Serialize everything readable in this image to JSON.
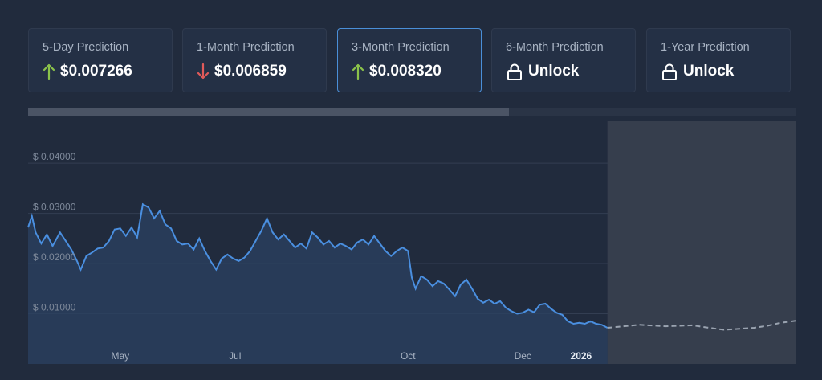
{
  "predictions": [
    {
      "label": "5-Day Prediction",
      "value": "$0.007266",
      "direction": "up"
    },
    {
      "label": "1-Month Prediction",
      "value": "$0.006859",
      "direction": "down"
    },
    {
      "label": "3-Month Prediction",
      "value": "$0.008320",
      "direction": "up",
      "active": true
    },
    {
      "label": "6-Month Prediction",
      "value": "Unlock",
      "direction": "locked"
    },
    {
      "label": "1-Year Prediction",
      "value": "Unlock",
      "direction": "locked"
    }
  ],
  "colors": {
    "up": "#8bc34a",
    "down": "#e05a5a",
    "accent": "#4a8fd8",
    "line": "#4a8fe0",
    "forecast": "#9aa3b0"
  },
  "progress": {
    "fraction": 0.627
  },
  "chart_data": {
    "type": "line",
    "yticks": [
      "$ 0.01000",
      "$ 0.02000",
      "$ 0.03000",
      "$ 0.04000"
    ],
    "ytick_values": [
      0.01,
      0.02,
      0.03,
      0.04
    ],
    "ylim": [
      0,
      0.0485
    ],
    "xticks": [
      "May",
      "Jul",
      "Oct",
      "Dec",
      "2026"
    ],
    "xtick_highlight": "2026",
    "xlim": [
      "2025-03-13",
      "2026-04-25"
    ],
    "xtick_dates": [
      "2025-05-01",
      "2025-07-01",
      "2025-10-01",
      "2025-12-01",
      "2026-01-01"
    ],
    "series": [
      {
        "values": [
          [
            "2025-03-13",
            0.0272
          ],
          [
            "2025-03-15",
            0.0295
          ],
          [
            "2025-03-17",
            0.0262
          ],
          [
            "2025-03-20",
            0.024
          ],
          [
            "2025-03-23",
            0.0258
          ],
          [
            "2025-03-26",
            0.0235
          ],
          [
            "2025-03-30",
            0.0262
          ],
          [
            "2025-04-02",
            0.0245
          ],
          [
            "2025-04-05",
            0.0228
          ],
          [
            "2025-04-08",
            0.0205
          ],
          [
            "2025-04-10",
            0.0188
          ],
          [
            "2025-04-13",
            0.0215
          ],
          [
            "2025-04-16",
            0.0222
          ],
          [
            "2025-04-19",
            0.023
          ],
          [
            "2025-04-22",
            0.0232
          ],
          [
            "2025-04-25",
            0.0245
          ],
          [
            "2025-04-28",
            0.0268
          ],
          [
            "2025-05-01",
            0.027
          ],
          [
            "2025-05-04",
            0.0255
          ],
          [
            "2025-05-07",
            0.0272
          ],
          [
            "2025-05-10",
            0.0252
          ],
          [
            "2025-05-13",
            0.0318
          ],
          [
            "2025-05-16",
            0.0312
          ],
          [
            "2025-05-19",
            0.029
          ],
          [
            "2025-05-22",
            0.0305
          ],
          [
            "2025-05-25",
            0.0278
          ],
          [
            "2025-05-28",
            0.027
          ],
          [
            "2025-05-31",
            0.0245
          ],
          [
            "2025-06-03",
            0.0238
          ],
          [
            "2025-06-06",
            0.024
          ],
          [
            "2025-06-09",
            0.0228
          ],
          [
            "2025-06-12",
            0.025
          ],
          [
            "2025-06-15",
            0.0225
          ],
          [
            "2025-06-18",
            0.0205
          ],
          [
            "2025-06-21",
            0.0188
          ],
          [
            "2025-06-24",
            0.021
          ],
          [
            "2025-06-27",
            0.0218
          ],
          [
            "2025-06-30",
            0.021
          ],
          [
            "2025-07-03",
            0.0205
          ],
          [
            "2025-07-06",
            0.0212
          ],
          [
            "2025-07-09",
            0.0225
          ],
          [
            "2025-07-12",
            0.0245
          ],
          [
            "2025-07-15",
            0.0265
          ],
          [
            "2025-07-18",
            0.029
          ],
          [
            "2025-07-21",
            0.0262
          ],
          [
            "2025-07-24",
            0.0248
          ],
          [
            "2025-07-27",
            0.0258
          ],
          [
            "2025-07-30",
            0.0245
          ],
          [
            "2025-08-02",
            0.0232
          ],
          [
            "2025-08-05",
            0.024
          ],
          [
            "2025-08-08",
            0.023
          ],
          [
            "2025-08-11",
            0.0262
          ],
          [
            "2025-08-14",
            0.0252
          ],
          [
            "2025-08-17",
            0.0238
          ],
          [
            "2025-08-20",
            0.0245
          ],
          [
            "2025-08-23",
            0.0232
          ],
          [
            "2025-08-26",
            0.024
          ],
          [
            "2025-08-29",
            0.0235
          ],
          [
            "2025-09-01",
            0.0228
          ],
          [
            "2025-09-04",
            0.0242
          ],
          [
            "2025-09-07",
            0.0248
          ],
          [
            "2025-09-10",
            0.0238
          ],
          [
            "2025-09-13",
            0.0255
          ],
          [
            "2025-09-16",
            0.024
          ],
          [
            "2025-09-19",
            0.0225
          ],
          [
            "2025-09-22",
            0.0215
          ],
          [
            "2025-09-25",
            0.0225
          ],
          [
            "2025-09-28",
            0.0232
          ],
          [
            "2025-10-01",
            0.0225
          ],
          [
            "2025-10-03",
            0.0172
          ],
          [
            "2025-10-05",
            0.015
          ],
          [
            "2025-10-08",
            0.0175
          ],
          [
            "2025-10-11",
            0.0168
          ],
          [
            "2025-10-14",
            0.0155
          ],
          [
            "2025-10-17",
            0.0165
          ],
          [
            "2025-10-20",
            0.016
          ],
          [
            "2025-10-23",
            0.0148
          ],
          [
            "2025-10-26",
            0.0135
          ],
          [
            "2025-10-29",
            0.0158
          ],
          [
            "2025-11-01",
            0.0168
          ],
          [
            "2025-11-04",
            0.015
          ],
          [
            "2025-11-07",
            0.013
          ],
          [
            "2025-11-10",
            0.0122
          ],
          [
            "2025-11-13",
            0.0128
          ],
          [
            "2025-11-16",
            0.012
          ],
          [
            "2025-11-19",
            0.0125
          ],
          [
            "2025-11-22",
            0.0112
          ],
          [
            "2025-11-25",
            0.0105
          ],
          [
            "2025-11-28",
            0.01
          ],
          [
            "2025-12-01",
            0.0102
          ],
          [
            "2025-12-04",
            0.0108
          ],
          [
            "2025-12-07",
            0.0103
          ],
          [
            "2025-12-10",
            0.0118
          ],
          [
            "2025-12-13",
            0.012
          ],
          [
            "2025-12-16",
            0.011
          ],
          [
            "2025-12-19",
            0.0102
          ],
          [
            "2025-12-22",
            0.0098
          ],
          [
            "2025-12-25",
            0.0085
          ],
          [
            "2025-12-28",
            0.008
          ],
          [
            "2025-12-31",
            0.0082
          ],
          [
            "2026-01-03",
            0.008
          ],
          [
            "2026-01-06",
            0.0085
          ],
          [
            "2026-01-09",
            0.008
          ],
          [
            "2026-01-12",
            0.0078
          ],
          [
            "2026-01-15",
            0.0072
          ]
        ]
      },
      {
        "values": [
          [
            "2026-01-15",
            0.0072
          ],
          [
            "2026-02-01",
            0.0078
          ],
          [
            "2026-02-15",
            0.0075
          ],
          [
            "2026-03-01",
            0.0077
          ],
          [
            "2026-03-10",
            0.0072
          ],
          [
            "2026-03-18",
            0.0068
          ],
          [
            "2026-03-26",
            0.007
          ],
          [
            "2026-04-03",
            0.0072
          ],
          [
            "2026-04-10",
            0.0076
          ],
          [
            "2026-04-17",
            0.0082
          ],
          [
            "2026-04-25",
            0.0086
          ]
        ]
      }
    ]
  }
}
